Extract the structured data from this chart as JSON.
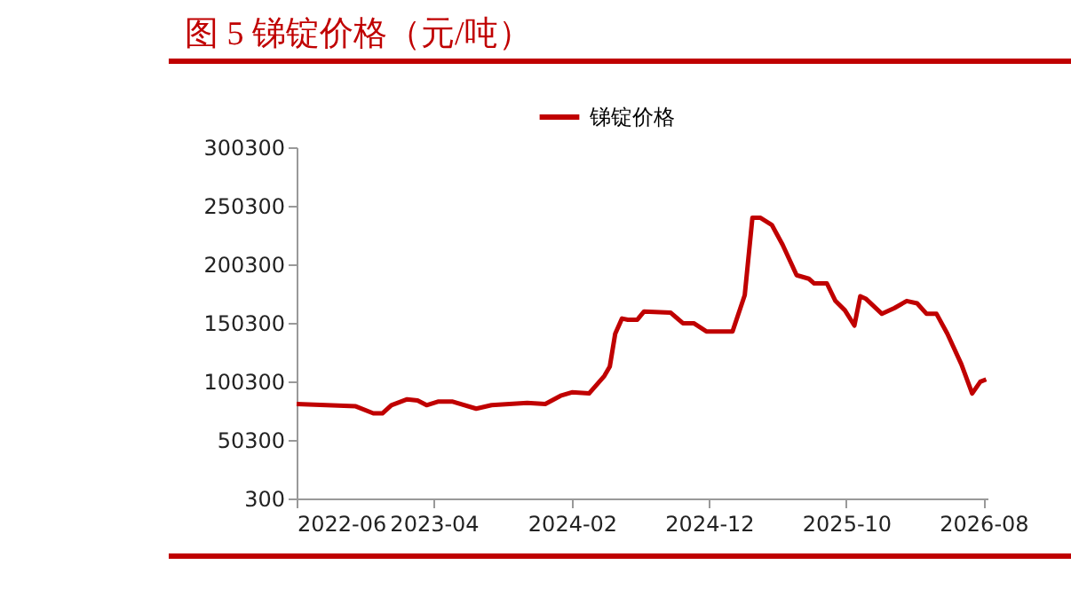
{
  "chart_data": {
    "type": "line",
    "title": "图 5 锑锭价格（元/吨）",
    "x": [
      "2022-06-01",
      "2022-10-10",
      "2022-11-18",
      "2022-12-08",
      "2022-12-28",
      "2023-02-01",
      "2023-02-24",
      "2023-03-16",
      "2023-04-10",
      "2023-05-13",
      "2023-07-04",
      "2023-08-07",
      "2023-10-25",
      "2023-12-04",
      "2024-01-07",
      "2024-02-01",
      "2024-03-10",
      "2024-04-13",
      "2024-04-25",
      "2024-05-07",
      "2024-05-22",
      "2024-06-04",
      "2024-06-25",
      "2024-07-10",
      "2024-09-07",
      "2024-10-04",
      "2024-10-28",
      "2024-11-25",
      "2025-01-22",
      "2025-02-18",
      "2025-03-07",
      "2025-03-25",
      "2025-04-19",
      "2025-05-13",
      "2025-06-13",
      "2025-07-10",
      "2025-07-22",
      "2025-08-19",
      "2025-09-07",
      "2025-09-28",
      "2025-10-19",
      "2025-11-01",
      "2025-11-13",
      "2025-12-19",
      "2026-01-16",
      "2026-02-12",
      "2026-03-07",
      "2026-03-28",
      "2026-04-19",
      "2026-05-13",
      "2026-06-13",
      "2026-07-07",
      "2026-07-25",
      "2026-08-07"
    ],
    "series": [
      {
        "name": "锑锭价格",
        "color": "#c00000",
        "values": [
          81000,
          79000,
          73000,
          73000,
          80000,
          85000,
          84000,
          80000,
          83000,
          83000,
          77000,
          80000,
          82000,
          81000,
          88000,
          91000,
          90000,
          105000,
          113000,
          141000,
          154000,
          153000,
          153000,
          160000,
          159000,
          150000,
          150000,
          143000,
          143000,
          174000,
          240000,
          240000,
          234000,
          217000,
          191000,
          188000,
          184000,
          184000,
          169000,
          161000,
          148000,
          173000,
          171000,
          158000,
          163000,
          169000,
          167000,
          158000,
          158000,
          141000,
          115000,
          90000,
          100000,
          102000
        ]
      }
    ],
    "xlim": [
      "2022-06-01",
      "2026-08-10"
    ],
    "xticks": [
      "2022-06",
      "2023-04",
      "2024-02",
      "2024-12",
      "2025-10",
      "2026-08"
    ],
    "ylim": [
      300,
      300300
    ],
    "yticks": [
      300,
      50300,
      100300,
      150300,
      200300,
      250300,
      300300
    ],
    "legend": "top",
    "grid": false,
    "line_style": "solid"
  }
}
